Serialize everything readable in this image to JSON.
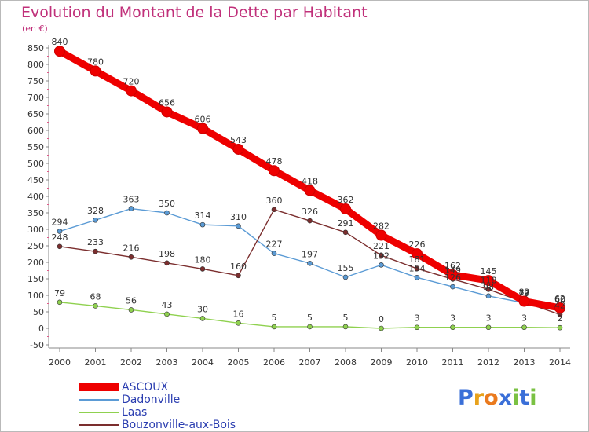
{
  "title": "Evolution du Montant de la Dette par Habitant",
  "unit": "(en €)",
  "logo": {
    "letters": [
      "P",
      "r",
      "o",
      "x",
      "i",
      "t",
      "i"
    ],
    "colors": [
      "#3a6fd8",
      "#e8a21c",
      "#ea7a1e",
      "#3a6fd8",
      "#7ac143",
      "#3a6fd8",
      "#7ac143"
    ]
  },
  "chart_data": {
    "type": "line",
    "x": [
      "2000",
      "2001",
      "2002",
      "2003",
      "2004",
      "2005",
      "2006",
      "2007",
      "2008",
      "2009",
      "2010",
      "2011",
      "2012",
      "2013",
      "2014"
    ],
    "y_ticks": [
      "850",
      "800",
      "750",
      "700",
      "650",
      "600",
      "550",
      "500",
      "450",
      "400",
      "350",
      "300",
      "250",
      "200",
      "150",
      "100",
      "50",
      "0",
      "-50"
    ],
    "ylim": [
      -50,
      850
    ],
    "grid": false,
    "legend_position": "bottom-left",
    "series": [
      {
        "name": "ASCOUX",
        "color": "#ee0000",
        "values": [
          840,
          780,
          720,
          656,
          606,
          543,
          478,
          418,
          362,
          282,
          226,
          162,
          145,
          82,
          62
        ],
        "labels": [
          "840",
          "780",
          "720",
          "656",
          "606",
          "543",
          "478",
          "418",
          "362",
          "282",
          "226",
          "162",
          "145",
          "82",
          "62"
        ]
      },
      {
        "name": "Dadonville",
        "color": "#5b9bd5",
        "values": [
          294,
          328,
          363,
          350,
          314,
          310,
          227,
          197,
          155,
          192,
          154,
          126,
          98,
          77,
          60
        ],
        "labels": [
          "294",
          "328",
          "363",
          "350",
          "314",
          "310",
          "227",
          "197",
          "155",
          "192",
          "154",
          "126",
          "98",
          "77",
          "60"
        ]
      },
      {
        "name": "Laas",
        "color": "#8fd14f",
        "values": [
          79,
          68,
          56,
          43,
          30,
          16,
          5,
          5,
          5,
          0,
          3,
          3,
          3,
          3,
          2
        ],
        "labels": [
          "79",
          "68",
          "56",
          "43",
          "30",
          "16",
          "5",
          "5",
          "5",
          "0",
          "3",
          "3",
          "3",
          "3",
          "2"
        ]
      },
      {
        "name": "Bouzonville-aux-Bois",
        "color": "#7b2e2e",
        "values": [
          248,
          233,
          216,
          198,
          180,
          160,
          360,
          326,
          291,
          221,
          181,
          149,
          118,
          79,
          42
        ],
        "labels": [
          "248",
          "233",
          "216",
          "198",
          "180",
          "160",
          "360",
          "326",
          "291",
          "221",
          "181",
          "149",
          "118",
          "79",
          "42"
        ]
      }
    ]
  }
}
